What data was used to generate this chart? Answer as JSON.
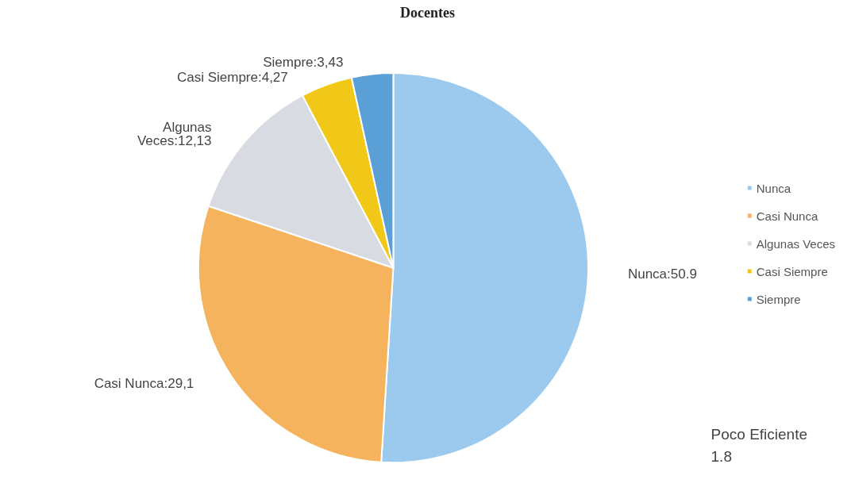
{
  "chart_data": {
    "type": "pie",
    "title": "Docentes",
    "categories": [
      "Nunca",
      "Casi Nunca",
      "Algunas Veces",
      "Casi Siempre",
      "Siempre"
    ],
    "values": [
      50.9,
      29.1,
      12.13,
      4.27,
      3.43
    ],
    "value_labels": [
      "Nunca:50.9",
      "Casi Nunca:29,1",
      "Algunas\nVeces:12,13",
      "Casi Siempre:4,27",
      "Siempre:3,43"
    ],
    "colors": [
      "#9ccaee",
      "#f4b35c",
      "#d8dce2",
      "#f2c818",
      "#5a9fd6"
    ],
    "legend": "right",
    "annotations": [
      "Poco Eficiente\n1.8"
    ]
  }
}
